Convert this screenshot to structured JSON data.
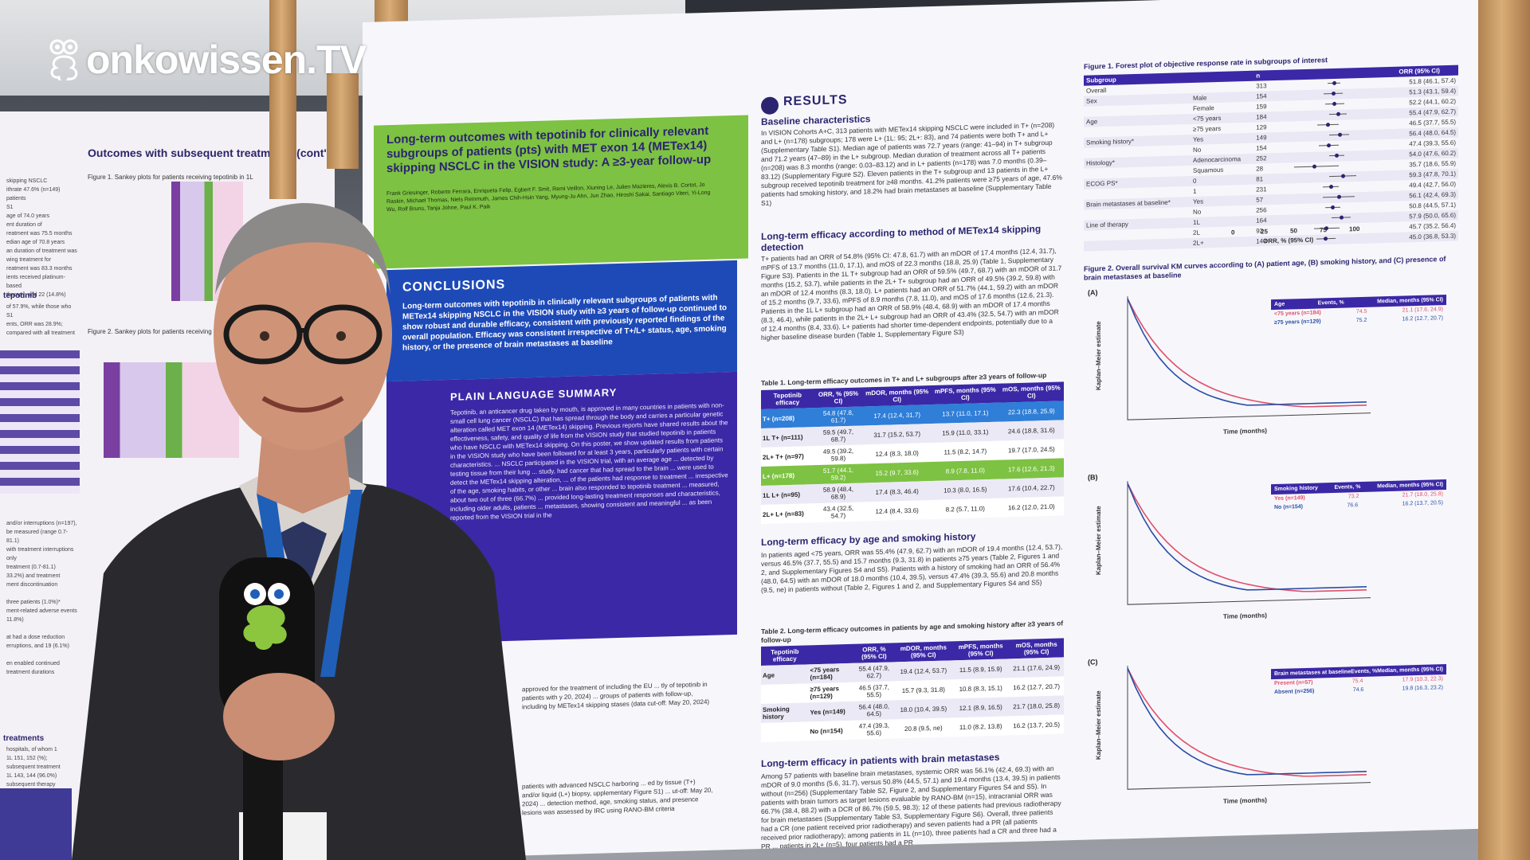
{
  "logo": {
    "text": "onkowissen.TV"
  },
  "left_poster": {
    "title": "Outcomes with subsequent treatments (cont'd)",
    "figure1": "Figure 1. Sankey plots for patients receiving tepotinib in 1L",
    "figure2": "Figure 2. Sankey plots for patients receiving tepotinib",
    "side_text_1": "skipping NSCLC\nithrate 47.6% (n=149) patients\nS1\nage of 74.0 years\nent duration of\nreatment was 75.5 months\nedian age of 70.8 years\nan duration of treatment was\nwing treatment for\nreatment was 83.3 months\nients received platinum-based\ntherapy, and 22 (14.8%)",
    "head_tepotinib": "tepotinib",
    "side_text_2": "of 57.9%, while those who\nS1\nents, ORR was 28.9%;\ncompared with all treatment",
    "side_text_3": "and/or interruptions (n=197),\nbe measured (range 0.7-81.1)\nwith treatment interruptions only\ntreatment (0.7-81.1)\n33.2%) and treatment\nment discontinuation\n\nthree patients (1.0%)*\nment-related adverse events\n11.8%)\n\nat had a dose reduction\nerruptions, and 19 (6.1%)\n\nen enabled continued\ntreatment durations",
    "head_treatments": "treatments",
    "side_text_4": "hospitals, of whom 1\n1L 151, 152 (%);\nsubsequent treatment\n1L 143, 144 (96.0%)\nsubsequent therapy"
  },
  "poster": {
    "title": "Long-term outcomes with tepotinib for clinically relevant subgroups of patients (pts) with MET exon 14 (METex14) skipping NSCLC in the VISION study: A ≥3-year follow-up",
    "authors": "Frank Griesinger, Roberto Ferrara, Enriqueta Felip, Egbert F. Smit, Remi Veillon, Xiuning Le, Julien Mazieres, Alexis B. Cortot, Jo Raskin, Michael Thomas, Niels Reinmuth, James Chih-Hsin Yang, Myung-Ju Ahn, Jun Zhao, Hiroshi Sakai, Santiago Viteri, Yi-Long Wu, Rolf Bruns, Tanja Johne, Paul K. Paik",
    "conclusions_head": "CONCLUSIONS",
    "conclusions_text": "Long-term outcomes with tepotinib in clinically relevant subgroups of patients with METex14 skipping NSCLC in the VISION study with ≥3 years of follow-up continued to show robust and durable efficacy, consistent with previously reported findings of the overall population. Efficacy was consistent irrespective of T+/L+ status, age, smoking history, or the presence of brain metastases at baseline",
    "pls_head": "PLAIN LANGUAGE SUMMARY",
    "pls_text": "Tepotinib, an anticancer drug taken by mouth, is approved in many countries in patients with non-small cell lung cancer (NSCLC) that has spread through the body and carries a particular genetic alteration called MET exon 14 (METex14) skipping. Previous reports have shared results about the effectiveness, safety, and quality of life from the VISION study that studied tepotinib in patients who have NSCLC with METex14 skipping. On this poster, we show updated results from patients in the VISION study who have been followed for at least 3 years, particularly patients with certain characteristics. ... NSCLC participated in the VISION trial, with an average age ... detected by testing tissue from their lung ... study, had cancer that had spread to the brain ... were used to detect the METex14 skipping alteration, ... of the patients had response to treatment ... irrespective of the age, smoking habits, or other ... brain also responded to tepotinib treatment ... measured, about two out of three (66.7%) ... provided long-lasting treatment responses and characteristics, including older adults, patients ... metastases, showing consistent and meaningful ... as been reported from the VISION trial in the",
    "lower_text_1": "approved for the treatment of including the EU ... tly of tepotinib in patients with y 20, 2024) ... groups of patients with follow-up, including by METex14 skipping stases (data cut-off: May 20, 2024)",
    "lower_text_2": "patients with advanced NSCLC harboring ... ed by tissue (T+) and/or liquid (L+) biopsy, upplementary Figure S1) ... ut-off: May 20, 2024) ... detection method, age, smoking status, and presence lesions was assessed by IRC using RANO-BM criteria",
    "results_head": "RESULTS",
    "baseline_head": "Baseline characteristics",
    "baseline_text": "In VISION Cohorts A+C, 313 patients with METex14 skipping NSCLC were included in T+ (n=208) and L+ (n=178) subgroups; 178 were L+ (1L: 95; 2L+: 83), and 74 patients were both T+ and L+ (Supplementary Table S1). Median age of patients was 72.7 years (range: 41–94) in T+ subgroup and 71.2 years (47–89) in the L+ subgroup. Median duration of treatment across all T+ patients (n=208) was 8.3 months (range: 0.03–83.12) and in L+ patients (n=178) was 7.0 months (0.39–83.12) (Supplementary Figure S2). Eleven patients in the T+ subgroup and 13 patients in the L+ subgroup received tepotinib treatment for ≥48 months. 41.2% patients were ≥75 years of age, 47.6% patients had smoking history, and 18.2% had brain metastases at baseline (Supplementary Table S1)",
    "method_head": "Long-term efficacy according to method of METex14 skipping detection",
    "method_text": "T+ patients had an ORR of 54.8% (95% CI: 47.8, 61.7) with an mDOR of 17.4 months (12.4, 31.7), mPFS of 13.7 months (11.0, 17.1), and mOS of 22.3 months (18.8, 25.9) (Table 1, Supplementary Figure S3). Patients in the 1L T+ subgroup had an ORR of 59.5% (49.7, 68.7) with an mDOR of 31.7 months (15.2, 53.7), while patients in the 2L+ T+ subgroup had an ORR of 49.5% (39.2, 59.8) with an mDOR of 12.4 months (8.3, 18.0). L+ patients had an ORR of 51.7% (44.1, 59.2) with an mDOR of 15.2 months (9.7, 33.6), mPFS of 8.9 months (7.8, 11.0), and mOS of 17.6 months (12.6, 21.3). Patients in the 1L L+ subgroup had an ORR of 58.9% (48.4, 68.9) with an mDOR of 17.4 months (8.3, 46.4), while patients in the 2L+ L+ subgroup had an ORR of 43.4% (32.5, 54.7) with an mDOR of 12.4 months (8.4, 33.6). L+ patients had shorter time-dependent endpoints, potentially due to a higher baseline disease burden (Table 1, Supplementary Figure S3)",
    "table1_title": "Table 1. Long-term efficacy outcomes in T+ and L+ subgroups after ≥3 years of follow-up",
    "table1_headers": [
      "Tepotinib efficacy",
      "ORR, % (95% CI)",
      "mDOR, months (95% CI)",
      "mPFS, months (95% CI)",
      "mOS, months (95% CI)"
    ],
    "table1_rows": [
      {
        "label": "T+ (n=208)",
        "orr": "54.8 (47.8, 61.7)",
        "mdor": "17.4 (12.4, 31.7)",
        "mpfs": "13.7 (11.0, 17.1)",
        "mos": "22.3 (18.8, 25.9)",
        "style": "t-blue"
      },
      {
        "label": "1L T+ (n=111)",
        "orr": "59.5 (49.7, 68.7)",
        "mdor": "31.7 (15.2, 53.7)",
        "mpfs": "15.9 (11.0, 33.1)",
        "mos": "24.6 (18.8, 31.6)",
        "style": ""
      },
      {
        "label": "2L+ T+ (n=97)",
        "orr": "49.5 (39.2, 59.8)",
        "mdor": "12.4 (8.3, 18.0)",
        "mpfs": "11.5 (8.2, 14.7)",
        "mos": "19.7 (17.0, 24.5)",
        "style": "alt"
      },
      {
        "label": "L+ (n=178)",
        "orr": "51.7 (44.1, 59.2)",
        "mdor": "15.2 (9.7, 33.6)",
        "mpfs": "8.9 (7.8, 11.0)",
        "mos": "17.6 (12.6, 21.3)",
        "style": "l-green"
      },
      {
        "label": "1L L+ (n=95)",
        "orr": "58.9 (48.4, 68.9)",
        "mdor": "17.4 (8.3, 46.4)",
        "mpfs": "10.3 (8.0, 16.5)",
        "mos": "17.6 (10.4, 22.7)",
        "style": ""
      },
      {
        "label": "2L+ L+ (n=83)",
        "orr": "43.4 (32.5, 54.7)",
        "mdor": "12.4 (8.4, 33.6)",
        "mpfs": "8.2 (5.7, 11.0)",
        "mos": "16.2 (12.0, 21.0)",
        "style": "alt"
      }
    ],
    "age_head": "Long-term efficacy by age and smoking history",
    "age_text": "In patients aged <75 years, ORR was 55.4% (47.9, 62.7) with an mDOR of 19.4 months (12.4, 53.7), versus 46.5% (37.7, 55.5) and 15.7 months (9.3, 31.8) in patients ≥75 years (Table 2, Figures 1 and 2, and Supplementary Figures S4 and S5). Patients with a history of smoking had an ORR of 56.4% (48.0, 64.5) with an mDOR of 18.0 months (10.4, 39.5), versus 47.4% (39.3, 55.6) and 20.8 months (9.5, ne) in patients without (Table 2, Figures 1 and 2, and Supplementary Figures S4 and S5)",
    "table2_title": "Table 2. Long-term efficacy outcomes in patients by age and smoking history after ≥3 years of follow-up",
    "table2_headers": [
      "Tepotinib efficacy",
      "",
      "ORR, % (95% CI)",
      "mDOR, months (95% CI)",
      "mPFS, months (95% CI)",
      "mOS, months (95% CI)"
    ],
    "table2_rows": [
      {
        "group": "Age",
        "label": "<75 years (n=184)",
        "orr": "55.4 (47.9, 62.7)",
        "mdor": "19.4 (12.4, 53.7)",
        "mpfs": "11.5 (8.9, 15.9)",
        "mos": "21.1 (17.6, 24.9)"
      },
      {
        "group": "",
        "label": "≥75 years (n=129)",
        "orr": "46.5 (37.7, 55.5)",
        "mdor": "15.7 (9.3, 31.8)",
        "mpfs": "10.8 (8.3, 15.1)",
        "mos": "16.2 (12.7, 20.7)"
      },
      {
        "group": "Smoking history",
        "label": "Yes (n=149)",
        "orr": "56.4 (48.0, 64.5)",
        "mdor": "18.0 (10.4, 39.5)",
        "mpfs": "12.1 (8.9, 16.5)",
        "mos": "21.7 (18.0, 25.8)"
      },
      {
        "group": "",
        "label": "No (n=154)",
        "orr": "47.4 (39.3, 55.6)",
        "mdor": "20.8 (9.5, ne)",
        "mpfs": "11.0 (8.2, 13.8)",
        "mos": "16.2 (13.7, 20.5)"
      }
    ],
    "brain_head": "Long-term efficacy in patients with brain metastases",
    "brain_text": "Among 57 patients with baseline brain metastases, systemic ORR was 56.1% (42.4, 69.3) with an mDOR of 9.0 months (5.6, 31.7), versus 50.8% (44.5, 57.1) and 19.4 months (13.4, 39.5) in patients without (n=256) (Supplementary Table S2, Figure 2, and Supplementary Figures S4 and S5). In patients with brain tumors as target lesions evaluable by RANO-BM (n=15), intracranial ORR was 66.7% (38.4, 88.2) with a DCR of 86.7% (59.5, 98.3); 12 of these patients had previous radiotherapy for brain metastases (Supplementary Table S3, Supplementary Figure S6). Overall, three patients had a CR (one patient received prior radiotherapy) and seven patients had a PR (all patients received prior radiotherapy); among patients in 1L (n=10), three patients had a CR and three had a PR ... patients in 2L+ (n=5), four patients had a PR",
    "figure1_title": "Figure 1. Forest plot of objective response rate in subgroups of interest",
    "forest_headers": [
      "Subgroup",
      "",
      "n",
      "",
      "ORR (95% CI)"
    ],
    "forest_rows": [
      {
        "group": "Overall",
        "sub": "",
        "n": "313",
        "orr": "51.8 (46.1, 57.4)",
        "est": 51.8,
        "lo": 46.1,
        "hi": 57.4
      },
      {
        "group": "Sex",
        "sub": "Male",
        "n": "154",
        "orr": "51.3 (43.1, 59.4)",
        "est": 51.3,
        "lo": 43.1,
        "hi": 59.4
      },
      {
        "group": "",
        "sub": "Female",
        "n": "159",
        "orr": "52.2 (44.1, 60.2)",
        "est": 52.2,
        "lo": 44.1,
        "hi": 60.2
      },
      {
        "group": "Age",
        "sub": "<75 years",
        "n": "184",
        "orr": "55.4 (47.9, 62.7)",
        "est": 55.4,
        "lo": 47.9,
        "hi": 62.7
      },
      {
        "group": "",
        "sub": "≥75 years",
        "n": "129",
        "orr": "46.5 (37.7, 55.5)",
        "est": 46.5,
        "lo": 37.7,
        "hi": 55.5
      },
      {
        "group": "Smoking history*",
        "sub": "Yes",
        "n": "149",
        "orr": "56.4 (48.0, 64.5)",
        "est": 56.4,
        "lo": 48.0,
        "hi": 64.5
      },
      {
        "group": "",
        "sub": "No",
        "n": "154",
        "orr": "47.4 (39.3, 55.6)",
        "est": 47.4,
        "lo": 39.3,
        "hi": 55.6
      },
      {
        "group": "Histology*",
        "sub": "Adenocarcinoma",
        "n": "252",
        "orr": "54.0 (47.6, 60.2)",
        "est": 54.0,
        "lo": 47.6,
        "hi": 60.2
      },
      {
        "group": "",
        "sub": "Squamous",
        "n": "28",
        "orr": "35.7 (18.6, 55.9)",
        "est": 35.7,
        "lo": 18.6,
        "hi": 55.9
      },
      {
        "group": "ECOG PS*",
        "sub": "0",
        "n": "81",
        "orr": "59.3 (47.8, 70.1)",
        "est": 59.3,
        "lo": 47.8,
        "hi": 70.1
      },
      {
        "group": "",
        "sub": "1",
        "n": "231",
        "orr": "49.4 (42.7, 56.0)",
        "est": 49.4,
        "lo": 42.7,
        "hi": 56.0
      },
      {
        "group": "Brain metastases at baseline*",
        "sub": "Yes",
        "n": "57",
        "orr": "56.1 (42.4, 69.3)",
        "est": 56.1,
        "lo": 42.4,
        "hi": 69.3
      },
      {
        "group": "",
        "sub": "No",
        "n": "256",
        "orr": "50.8 (44.5, 57.1)",
        "est": 50.8,
        "lo": 44.5,
        "hi": 57.1
      },
      {
        "group": "Line of therapy",
        "sub": "1L",
        "n": "164",
        "orr": "57.9 (50.0, 65.6)",
        "est": 57.9,
        "lo": 50.0,
        "hi": 65.6
      },
      {
        "group": "",
        "sub": "2L",
        "n": "92",
        "orr": "45.7 (35.2, 56.4)",
        "est": 45.7,
        "lo": 35.2,
        "hi": 56.4
      },
      {
        "group": "",
        "sub": "2L+",
        "n": "149",
        "orr": "45.0 (36.8, 53.3)",
        "est": 45.0,
        "lo": 36.8,
        "hi": 53.3
      }
    ],
    "forest_ticks": [
      "0",
      "25",
      "50",
      "75",
      "100"
    ],
    "forest_xlabel": "ORR, % (95% CI)",
    "figure2_title": "Figure 2. Overall survival KM curves according to (A) patient age, (B) smoking history, and (C) presence of brain metastases at baseline",
    "km_ylabel": "Kaplan–Meier estimate",
    "km_xlabel": "Time (months)",
    "km": [
      {
        "panel": "(A)",
        "legend_head": "Age",
        "events_head": "Events, %",
        "median_head": "Median, months (95% CI)",
        "rows": [
          {
            "label": "<75 years (n=184)",
            "events": "74.5",
            "median": "21.1 (17.6, 24.9)",
            "color": "#e0506a"
          },
          {
            "label": "≥75 years (n=129)",
            "events": "75.2",
            "median": "16.2 (12.7, 20.7)",
            "color": "#2b4ea8"
          }
        ]
      },
      {
        "panel": "(B)",
        "legend_head": "Smoking history",
        "events_head": "Events, %",
        "median_head": "Median, months (95% CI)",
        "rows": [
          {
            "label": "Yes (n=149)",
            "events": "73.2",
            "median": "21.7 (18.0, 25.8)",
            "color": "#e0506a"
          },
          {
            "label": "No (n=154)",
            "events": "76.6",
            "median": "16.2 (13.7, 20.5)",
            "color": "#2b4ea8"
          }
        ]
      },
      {
        "panel": "(C)",
        "legend_head": "Brain metastases at baseline",
        "events_head": "Events, %",
        "median_head": "Median, months (95% CI)",
        "rows": [
          {
            "label": "Present (n=57)",
            "events": "75.4",
            "median": "17.9 (10.3, 22.3)",
            "color": "#e0506a"
          },
          {
            "label": "Absent (n=256)",
            "events": "74.6",
            "median": "19.8 (16.3, 23.2)",
            "color": "#2b4ea8"
          }
        ]
      }
    ]
  },
  "colors": {
    "poster_purple": "#3b28a6",
    "poster_green": "#7dc242",
    "poster_blue": "#1e4ab8",
    "logo": "#ffffff"
  }
}
